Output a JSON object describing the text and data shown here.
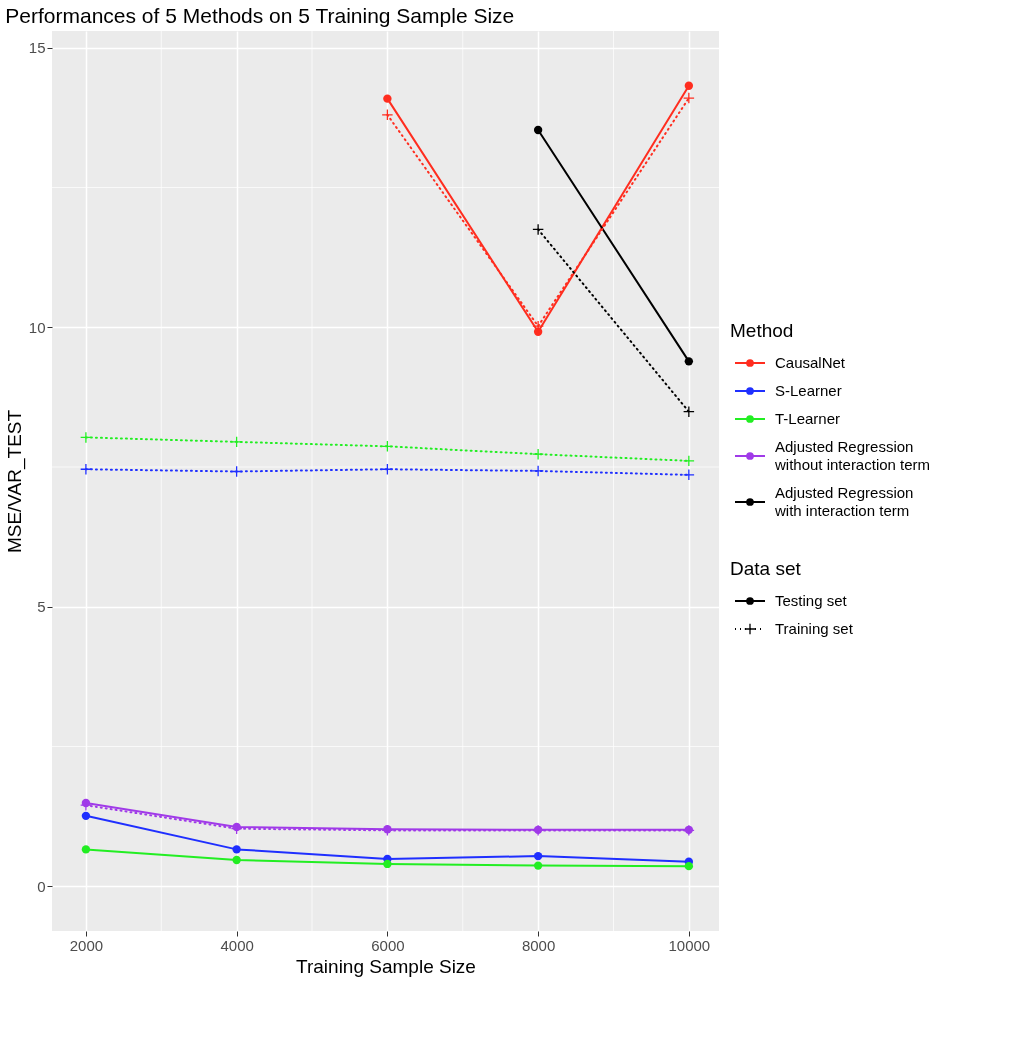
{
  "chart_data": {
    "type": "line",
    "title": "Performances of 5 Methods on 5 Training Sample Size",
    "xlabel": "Training Sample Size",
    "ylabel": "MSE/VAR_TEST",
    "legend_title": [
      "Method",
      "Data set"
    ],
    "legend": "right",
    "grid": true,
    "annotations": [
      "Testing set",
      "Training set"
    ],
    "x": [
      2000,
      4000,
      6000,
      8000,
      10000
    ],
    "xlim": [
      1550,
      10400
    ],
    "xticks": [
      2000,
      4000,
      6000,
      8000,
      10000
    ],
    "ylim": [
      -0.8,
      15.3
    ],
    "yticks": [
      0,
      5,
      10,
      15
    ],
    "series": [
      {
        "name": "CausalNet",
        "color": "#ff2d1f",
        "line_style": "solid",
        "marker": "circle",
        "values": [
          null,
          null,
          14.09,
          9.92,
          14.32
        ]
      },
      {
        "color": "#ff2d1f",
        "line_style": "dotted",
        "marker": "cross",
        "values": [
          null,
          null,
          13.8,
          10.02,
          14.1
        ]
      },
      {
        "name": "S-Learner",
        "color": "#1f2fff",
        "line_style": "solid",
        "marker": "circle",
        "values": [
          1.26,
          0.66,
          0.49,
          0.54,
          0.44
        ]
      },
      {
        "color": "#1f2fff",
        "line_style": "dotted",
        "marker": "cross",
        "values": [
          7.46,
          7.42,
          7.46,
          7.43,
          7.36
        ]
      },
      {
        "name": "T-Learner",
        "color": "#22ee22",
        "line_style": "solid",
        "marker": "circle",
        "values": [
          0.66,
          0.47,
          0.4,
          0.37,
          0.36
        ]
      },
      {
        "color": "#22ee22",
        "line_style": "dotted",
        "marker": "cross",
        "values": [
          8.03,
          7.95,
          7.87,
          7.73,
          7.61
        ]
      },
      {
        "name": "Adjusted Regression\n without interaction term",
        "color": "#a03ae8",
        "line_style": "solid",
        "marker": "circle",
        "values": [
          1.49,
          1.06,
          1.02,
          1.01,
          1.01
        ]
      },
      {
        "color": "#a03ae8",
        "line_style": "dotted",
        "marker": "cross",
        "values": [
          1.45,
          1.03,
          1.0,
          1.0,
          1.0
        ]
      },
      {
        "name": "Adjusted Regression\n with interaction term",
        "color": "#000000",
        "line_style": "solid",
        "marker": "circle",
        "values": [
          null,
          null,
          null,
          13.53,
          9.39
        ]
      },
      {
        "color": "#000000",
        "line_style": "dotted",
        "marker": "cross",
        "values": [
          null,
          null,
          null,
          11.75,
          8.49
        ]
      }
    ]
  }
}
